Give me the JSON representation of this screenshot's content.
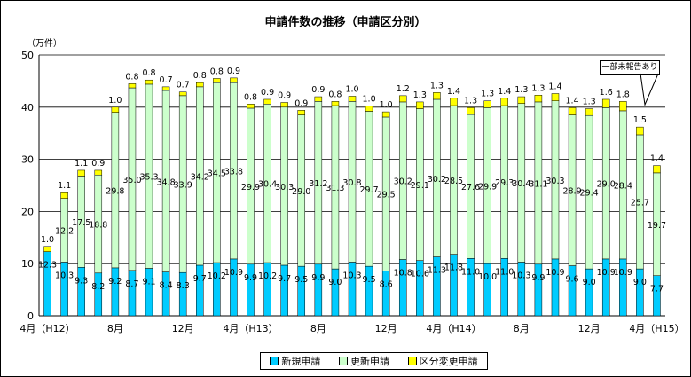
{
  "title": "申請件数の推移（申請区分別）",
  "unit_label": "（万件）",
  "callout": "一部未報告あり",
  "colors": {
    "new": "#00CCFF",
    "renew": "#CCFFCC",
    "change": "#FFFF00",
    "axis": "#000000"
  },
  "chart_data": {
    "type": "bar",
    "stacked": true,
    "ylim": [
      0,
      50
    ],
    "yticks": [
      0,
      10,
      20,
      30,
      40,
      50
    ],
    "x_tick_labels": [
      {
        "index": 0,
        "label": "4月（H12）"
      },
      {
        "index": 4,
        "label": "8月"
      },
      {
        "index": 8,
        "label": "12月"
      },
      {
        "index": 12,
        "label": "4月（H13）"
      },
      {
        "index": 16,
        "label": "8月"
      },
      {
        "index": 20,
        "label": "12月"
      },
      {
        "index": 24,
        "label": "4月（H14）"
      },
      {
        "index": 28,
        "label": "8月"
      },
      {
        "index": 32,
        "label": "12月"
      },
      {
        "index": 36,
        "label": "4月（H15）"
      }
    ],
    "series": [
      {
        "name": "新規申請",
        "color": "#00CCFF",
        "values": [
          12.3,
          10.3,
          9.3,
          8.2,
          9.2,
          8.7,
          9.1,
          8.4,
          8.3,
          9.7,
          10.2,
          10.9,
          9.9,
          10.2,
          9.7,
          9.5,
          9.9,
          9.0,
          10.3,
          9.5,
          8.6,
          10.8,
          10.6,
          11.3,
          11.8,
          11.0,
          10.0,
          11.0,
          10.3,
          9.9,
          10.9,
          9.6,
          9.0,
          10.9,
          10.9,
          9.0,
          7.7
        ],
        "labels": [
          "12.3",
          "10.3",
          "9.3",
          "8.2",
          "9.2",
          "8.7",
          "9.1",
          "8.4",
          "8.3",
          "9.7",
          "10.2",
          "10.9",
          "9.9",
          "10.2",
          "9.7",
          "9.5",
          "9.9",
          "9.0",
          "10.3",
          "9.5",
          "8.6",
          "10.8",
          "10.6",
          "11.3",
          "11.8",
          "11.0",
          "10.0",
          "11.0",
          "10.3",
          "9.9",
          "10.9",
          "9.6",
          "9.0",
          "10.9",
          "10.9",
          "9.0",
          "7.7"
        ]
      },
      {
        "name": "更新申請",
        "color": "#CCFFCC",
        "values": [
          0,
          12.2,
          17.5,
          18.8,
          29.8,
          35.0,
          35.3,
          34.8,
          33.9,
          34.2,
          34.5,
          33.8,
          29.9,
          30.4,
          30.3,
          29.0,
          31.2,
          31.3,
          30.8,
          29.7,
          29.5,
          30.2,
          29.1,
          30.2,
          28.5,
          27.6,
          29.9,
          29.3,
          30.4,
          31.1,
          30.3,
          28.9,
          29.4,
          29.0,
          28.4,
          25.7,
          19.7
        ],
        "labels": [
          "",
          "12.2",
          "17.5",
          "18.8",
          "29.8",
          "35.0",
          "35.3",
          "34.8",
          "33.9",
          "34.2",
          "34.5",
          "33.8",
          "29.9",
          "30.4",
          "30.3",
          "29.0",
          "31.2",
          "31.3",
          "30.8",
          "29.7",
          "29.5",
          "30.2",
          "29.1",
          "30.2",
          "28.5",
          "27.6",
          "29.9",
          "29.3",
          "30.4",
          "31.1",
          "30.3",
          "28.9",
          "29.4",
          "29.0",
          "28.4",
          "25.7",
          "19.7"
        ]
      },
      {
        "name": "区分変更申請",
        "color": "#FFFF00",
        "values": [
          1.0,
          1.1,
          1.1,
          0.9,
          1.0,
          0.8,
          0.8,
          0.7,
          0.7,
          0.8,
          0.8,
          0.9,
          0.8,
          0.9,
          0.9,
          0.9,
          0.9,
          0.8,
          1.0,
          1.0,
          1.0,
          1.2,
          1.3,
          1.3,
          1.4,
          1.3,
          1.3,
          1.4,
          1.3,
          1.3,
          1.4,
          1.4,
          1.3,
          1.6,
          1.8,
          1.5,
          1.4
        ],
        "labels": [
          "1.0",
          "1.1",
          "1.1",
          "0.9",
          "1.0",
          "0.8",
          "0.8",
          "0.7",
          "0.7",
          "0.8",
          "0.8",
          "0.9",
          "0.8",
          "0.9",
          "0.9",
          "0.9",
          "0.9",
          "0.8",
          "1.0",
          "1.0",
          "1.0",
          "1.2",
          "1.3",
          "1.3",
          "1.4",
          "1.3",
          "1.3",
          "1.4",
          "1.3",
          "1.3",
          "1.4",
          "1.4",
          "1.3",
          "1.6",
          "1.8",
          "1.5",
          "1.4"
        ]
      }
    ]
  }
}
